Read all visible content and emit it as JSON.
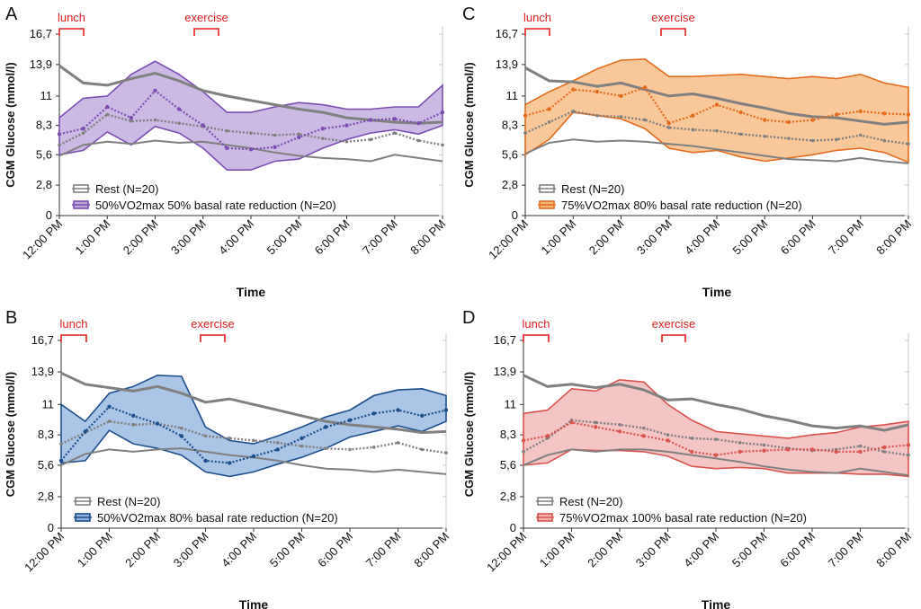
{
  "chart_data": [
    {
      "type": "area",
      "panel": "A",
      "event_labels": [
        "lunch",
        "exercise"
      ],
      "xlabel": "Time",
      "ylabel": "CGM Glucose (mmol/l)",
      "ylim": [
        0,
        16.7
      ],
      "y_ticks": [
        "16,7",
        "13,9",
        "11",
        "8,3",
        "5,6",
        "2,8",
        "0"
      ],
      "x_ticks": [
        "12:00 PM",
        "1:00 PM",
        "2:00 PM",
        "3:00 PM",
        "4:00 PM",
        "5:00 PM",
        "6:00 PM",
        "7:00 PM",
        "8:00 PM"
      ],
      "accent": "#7b4fb1",
      "fill": "#b9a3d9",
      "legend": {
        "rest": "Rest (N=20)",
        "treatment": "50%VO2max 50% basal rate reduction (N=20)"
      },
      "series": [
        {
          "name": "Rest (N=20)",
          "color": "#808080",
          "x": [
            0,
            0.5,
            1,
            1.5,
            2,
            2.5,
            3,
            3.5,
            4,
            4.5,
            5,
            5.5,
            6,
            6.5,
            7,
            7.5,
            8
          ],
          "mean": [
            6.5,
            7.6,
            9.3,
            8.7,
            8.8,
            8.5,
            8.2,
            7.8,
            7.6,
            7.4,
            7.5,
            7.1,
            6.8,
            7.0,
            7.6,
            6.9,
            6.5
          ],
          "upper": [
            13.8,
            12.2,
            12.0,
            12.6,
            13.1,
            12.4,
            11.5,
            11.0,
            10.6,
            10.2,
            9.8,
            9.5,
            9.0,
            8.8,
            8.6,
            8.5,
            8.6
          ],
          "lower": [
            5.5,
            6.5,
            6.8,
            6.6,
            6.9,
            6.7,
            6.8,
            6.5,
            6.2,
            5.8,
            5.5,
            5.3,
            5.2,
            5.0,
            5.6,
            5.3,
            5.0
          ]
        },
        {
          "name": "50%VO2max 50% basal rate reduction (N=20)",
          "color": "#7b4fb1",
          "x": [
            0,
            0.5,
            1,
            1.5,
            2,
            2.5,
            3,
            3.5,
            4,
            4.5,
            5,
            5.5,
            6,
            6.5,
            7,
            7.5,
            8
          ],
          "mean": [
            7.5,
            8.0,
            10.0,
            9.0,
            11.5,
            9.8,
            8.3,
            6.2,
            6.1,
            6.3,
            7.2,
            8.0,
            8.3,
            8.8,
            8.9,
            8.5,
            9.5
          ],
          "upper": [
            9.0,
            10.8,
            11.0,
            13.0,
            14.2,
            13.0,
            11.4,
            9.5,
            9.5,
            10.0,
            10.4,
            10.2,
            9.8,
            9.8,
            10.0,
            10.0,
            12.0
          ],
          "lower": [
            5.6,
            6.0,
            7.7,
            6.5,
            8.2,
            7.6,
            6.2,
            4.2,
            4.2,
            5.0,
            5.2,
            6.2,
            7.0,
            7.6,
            7.9,
            7.5,
            8.3
          ]
        }
      ]
    },
    {
      "type": "area",
      "panel": "B",
      "event_labels": [
        "lunch",
        "exercise"
      ],
      "xlabel": "Time",
      "ylabel": "CGM Glucose (mmol/l)",
      "ylim": [
        0,
        16.7
      ],
      "y_ticks": [
        "16,7",
        "13,9",
        "11",
        "8,3",
        "5,6",
        "2,8",
        "0"
      ],
      "x_ticks": [
        "12:00 PM",
        "1:00 PM",
        "2:00 PM",
        "3:00 PM",
        "4:00 PM",
        "5:00 PM",
        "6:00 PM",
        "7:00 PM",
        "8:00 PM"
      ],
      "accent": "#1f4e8c",
      "fill": "#8eb1dc",
      "legend": {
        "rest": "Rest (N=20)",
        "treatment": "50%VO2max 80% basal rate reduction (N=20)"
      },
      "series": [
        {
          "name": "Rest (N=20)",
          "color": "#808080",
          "x": [
            0,
            0.5,
            1,
            1.5,
            2,
            2.5,
            3,
            3.5,
            4,
            4.5,
            5,
            5.5,
            6,
            6.5,
            7,
            7.5,
            8
          ],
          "mean": [
            7.5,
            8.5,
            9.5,
            9.2,
            9.3,
            8.9,
            8.2,
            8.0,
            7.8,
            7.6,
            7.3,
            7.1,
            7.0,
            7.2,
            7.6,
            7.0,
            6.7
          ],
          "upper": [
            13.8,
            12.8,
            12.5,
            12.2,
            12.6,
            12.0,
            11.2,
            11.5,
            11.0,
            10.5,
            10.0,
            9.5,
            9.2,
            9.0,
            8.8,
            8.5,
            8.6
          ],
          "lower": [
            5.6,
            6.6,
            7.0,
            6.8,
            7.0,
            7.1,
            6.8,
            6.5,
            6.3,
            6.0,
            5.6,
            5.3,
            5.2,
            5.0,
            5.2,
            5.0,
            4.8
          ]
        },
        {
          "name": "50%VO2max 80% basal rate reduction (N=20)",
          "color": "#1f4e8c",
          "x": [
            0,
            0.5,
            1,
            1.5,
            2,
            2.5,
            3,
            3.5,
            4,
            4.5,
            5,
            5.5,
            6,
            6.5,
            7,
            7.5,
            8
          ],
          "mean": [
            6.0,
            8.6,
            10.8,
            10.0,
            9.3,
            8.2,
            6.0,
            5.8,
            6.4,
            7.0,
            8.0,
            9.0,
            9.6,
            10.2,
            10.5,
            10.0,
            10.5
          ],
          "upper": [
            11.0,
            9.5,
            12.0,
            12.6,
            13.6,
            13.5,
            9.0,
            7.8,
            7.5,
            8.2,
            9.0,
            9.9,
            10.5,
            11.8,
            12.3,
            12.4,
            11.8
          ],
          "lower": [
            5.8,
            6.0,
            8.7,
            7.5,
            7.1,
            6.5,
            5.0,
            4.6,
            5.0,
            5.7,
            6.3,
            7.1,
            8.1,
            8.6,
            9.1,
            8.6,
            9.5
          ]
        }
      ]
    },
    {
      "type": "area",
      "panel": "C",
      "event_labels": [
        "lunch",
        "exercise"
      ],
      "xlabel": "Time",
      "ylabel": "CGM Glucose (mmol/l)",
      "ylim": [
        0,
        16.7
      ],
      "y_ticks": [
        "16,7",
        "13,9",
        "11",
        "8,3",
        "5,6",
        "2,8",
        "0"
      ],
      "x_ticks": [
        "12:00 PM",
        "1:00 PM",
        "2:00 PM",
        "3:00 PM",
        "4:00 PM",
        "5:00 PM",
        "6:00 PM",
        "7:00 PM",
        "8:00 PM"
      ],
      "accent": "#e46c1e",
      "fill": "#f6b57a",
      "legend": {
        "rest": "Rest (N=20)",
        "treatment": "75%VO2max 80% basal rate reduction (N=20)"
      },
      "series": [
        {
          "name": "Rest (N=20)",
          "color": "#808080",
          "x": [
            0,
            0.5,
            1,
            1.5,
            2,
            2.5,
            3,
            3.5,
            4,
            4.5,
            5,
            5.5,
            6,
            6.5,
            7,
            7.5,
            8
          ],
          "mean": [
            7.6,
            8.6,
            9.6,
            9.2,
            9.1,
            8.8,
            8.1,
            7.9,
            7.8,
            7.5,
            7.3,
            7.1,
            6.9,
            7.0,
            7.4,
            6.9,
            6.6
          ],
          "upper": [
            13.6,
            12.4,
            12.3,
            11.9,
            12.2,
            11.6,
            11.0,
            11.2,
            10.8,
            10.3,
            9.9,
            9.4,
            9.1,
            9.0,
            8.7,
            8.4,
            8.6
          ],
          "lower": [
            5.7,
            6.7,
            7.0,
            6.8,
            6.9,
            6.8,
            6.6,
            6.4,
            6.1,
            5.8,
            5.5,
            5.2,
            5.1,
            5.0,
            5.3,
            5.0,
            4.8
          ]
        },
        {
          "name": "75%VO2max 80% basal rate reduction (N=20)",
          "color": "#e46c1e",
          "x": [
            0,
            0.5,
            1,
            1.5,
            2,
            2.5,
            3,
            3.5,
            4,
            4.5,
            5,
            5.5,
            6,
            6.5,
            7,
            7.5,
            8
          ],
          "mean": [
            9.2,
            9.8,
            11.6,
            11.4,
            11.0,
            11.8,
            8.5,
            9.2,
            10.2,
            9.5,
            8.8,
            8.6,
            8.8,
            9.3,
            9.6,
            9.4,
            9.3
          ],
          "upper": [
            10.2,
            11.4,
            12.4,
            13.5,
            14.3,
            14.4,
            12.8,
            12.8,
            12.9,
            13.0,
            12.8,
            12.6,
            12.8,
            12.6,
            13.0,
            12.2,
            11.8
          ],
          "lower": [
            5.6,
            7.0,
            9.5,
            9.2,
            8.9,
            8.0,
            6.2,
            5.8,
            6.0,
            5.4,
            5.0,
            5.3,
            5.6,
            6.0,
            6.2,
            5.8,
            4.9
          ]
        }
      ]
    },
    {
      "type": "area",
      "panel": "D",
      "event_labels": [
        "lunch",
        "exercise"
      ],
      "xlabel": "Time",
      "ylabel": "CGM Glucose (mmol/l)",
      "ylim": [
        0,
        16.7
      ],
      "y_ticks": [
        "16,7",
        "13,9",
        "11",
        "8,3",
        "5,6",
        "2,8",
        "0"
      ],
      "x_ticks": [
        "12:00 PM",
        "1:00 PM",
        "2:00 PM",
        "3:00 PM",
        "4:00 PM",
        "5:00 PM",
        "6:00 PM",
        "7:00 PM",
        "8:00 PM"
      ],
      "accent": "#d9534f",
      "fill": "#f0b2b1",
      "legend": {
        "rest": "Rest (N=20)",
        "treatment": "75%VO2max 100% basal rate reduction (N=20)"
      },
      "series": [
        {
          "name": "Rest (N=20)",
          "color": "#808080",
          "x": [
            0,
            0.5,
            1,
            1.5,
            2,
            2.5,
            3,
            3.5,
            4,
            4.5,
            5,
            5.5,
            6,
            6.5,
            7,
            7.5,
            8
          ],
          "mean": [
            6.8,
            8.0,
            9.6,
            9.4,
            9.2,
            8.9,
            8.3,
            8.0,
            7.9,
            7.6,
            7.4,
            7.1,
            6.9,
            7.0,
            7.3,
            6.8,
            6.5
          ],
          "upper": [
            13.6,
            12.6,
            12.8,
            12.5,
            12.8,
            12.3,
            11.4,
            11.5,
            11.0,
            10.6,
            10.0,
            9.6,
            9.1,
            8.9,
            9.1,
            8.7,
            9.2
          ],
          "lower": [
            5.6,
            6.5,
            7.0,
            6.8,
            7.0,
            7.0,
            6.8,
            6.5,
            6.2,
            5.9,
            5.5,
            5.2,
            5.0,
            4.9,
            5.3,
            5.0,
            4.7
          ]
        },
        {
          "name": "75%VO2max 100% basal rate reduction (N=20)",
          "color": "#d9534f",
          "x": [
            0,
            0.5,
            1,
            1.5,
            2,
            2.5,
            3,
            3.5,
            4,
            4.5,
            5,
            5.5,
            6,
            6.5,
            7,
            7.5,
            8
          ],
          "mean": [
            7.8,
            8.2,
            9.4,
            9.0,
            8.6,
            8.2,
            7.8,
            6.8,
            6.5,
            6.8,
            6.9,
            7.0,
            7.0,
            6.8,
            6.8,
            7.2,
            7.4
          ],
          "upper": [
            10.2,
            10.5,
            12.4,
            12.2,
            13.2,
            13.0,
            11.0,
            9.6,
            8.6,
            8.4,
            8.2,
            8.0,
            8.3,
            8.5,
            9.0,
            9.2,
            9.5
          ],
          "lower": [
            5.6,
            5.8,
            7.0,
            6.9,
            6.9,
            6.8,
            6.4,
            5.5,
            5.3,
            5.4,
            5.3,
            4.9,
            4.9,
            4.9,
            4.8,
            4.8,
            4.6
          ]
        }
      ]
    }
  ]
}
